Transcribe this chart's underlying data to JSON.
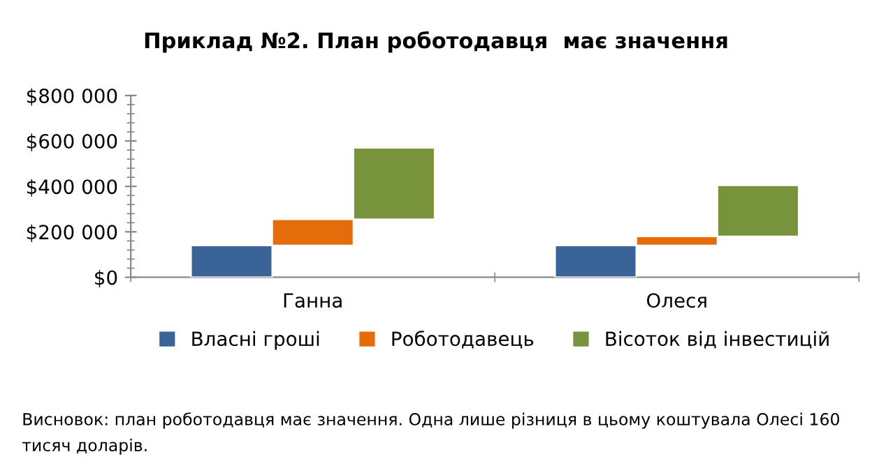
{
  "chart_data": {
    "type": "bar",
    "title": "Приклад №2. План роботодавця  має значення",
    "categories": [
      "Ганна",
      "Олеся"
    ],
    "series": [
      {
        "name": "Власні гроші",
        "color": "#3a6397",
        "values": [
          140000,
          140000
        ],
        "base": [
          0,
          0
        ]
      },
      {
        "name": "Роботодавець",
        "color": "#e46c0a",
        "values": [
          115000,
          40000
        ],
        "base": [
          140000,
          140000
        ]
      },
      {
        "name": "Вісоток від інвестицій",
        "color": "#77933c",
        "values": [
          315000,
          225000
        ],
        "base": [
          255000,
          180000
        ]
      }
    ],
    "ylim": [
      0,
      800000
    ],
    "yticks": [
      {
        "value": 0,
        "label": "$0"
      },
      {
        "value": 200000,
        "label": "$200 000"
      },
      {
        "value": 400000,
        "label": "$400 000"
      },
      {
        "value": 600000,
        "label": "$600 000"
      },
      {
        "value": 800000,
        "label": "$800 000"
      }
    ],
    "grid": false,
    "legend": "bottom",
    "annotations": [
      "Висновок: план роботодавця має значення. Одна лише різниця в цьому коштувала Олесі 160 тисяч доларів."
    ]
  }
}
